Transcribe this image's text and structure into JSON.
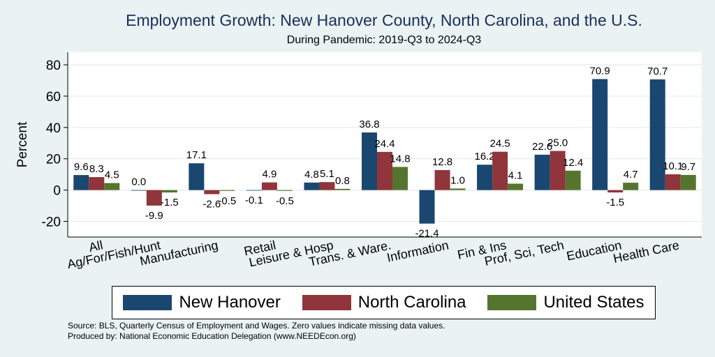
{
  "chart_data": {
    "type": "bar",
    "title": "Employment Growth: New Hanover County, North Carolina, and the U.S.",
    "subtitle": "During Pandemic: 2019-Q3 to 2024-Q3",
    "ylabel": "Percent",
    "xlabel": "",
    "ylim": [
      -30,
      88
    ],
    "yticks": [
      -20,
      0,
      20,
      40,
      60,
      80
    ],
    "categories": [
      "All",
      "Ag/For/Fish/Hunt",
      "Manufacturing",
      "Retail",
      "Leisure & Hosp",
      "Trans. & Ware.",
      "Information",
      "Fin & Ins",
      "Prof, Sci, Tech",
      "Education",
      "Health Care"
    ],
    "series": [
      {
        "name": "New Hanover",
        "color": "#1a476f",
        "values": [
          9.6,
          0.0,
          17.1,
          -0.1,
          4.8,
          36.8,
          -21.4,
          16.2,
          22.6,
          70.9,
          70.7
        ],
        "labels": [
          "9.6",
          "0.0",
          "17.1",
          "-0.1",
          "4.8",
          "36.8",
          "-21.4",
          "16.2",
          "22.6",
          "70.9",
          "70.7"
        ]
      },
      {
        "name": "North Carolina",
        "color": "#90353b",
        "values": [
          8.3,
          -9.9,
          -2.6,
          4.9,
          5.1,
          24.4,
          12.8,
          24.5,
          25.0,
          -1.5,
          10.1
        ],
        "labels": [
          "8.3",
          "-9.9",
          "-2.6",
          "4.9",
          "5.1",
          "24.4",
          "12.8",
          "24.5",
          "25.0",
          "-1.5",
          "10.1"
        ]
      },
      {
        "name": "United States",
        "color": "#55752f",
        "values": [
          4.5,
          -1.5,
          -0.5,
          -0.5,
          0.8,
          14.8,
          1.0,
          4.1,
          12.4,
          4.7,
          9.7
        ],
        "labels": [
          "4.5",
          "-1.5",
          "-0.5",
          "-0.5",
          "0.8",
          "14.8",
          "1.0",
          "4.1",
          "12.4",
          "4.7",
          "9.7"
        ]
      }
    ],
    "grid": true,
    "legend_position": "bottom"
  },
  "notes": {
    "source": "Source: BLS, Quarterly Census of Employment and Wages. Zero values indicate missing data values.",
    "produced": "Produced by: National Economic Education Delegation (www.NEEDEcon.org)"
  }
}
